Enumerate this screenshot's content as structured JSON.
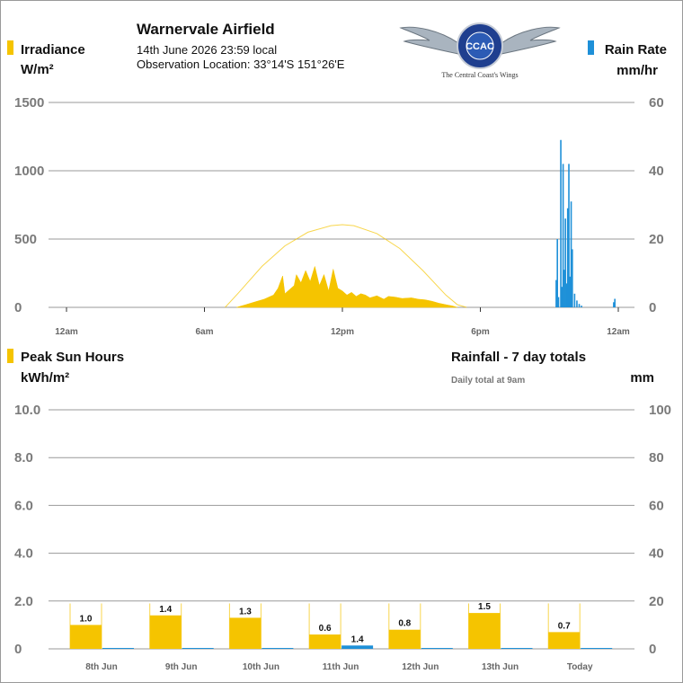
{
  "header": {
    "title": "Warnervale Airfield",
    "datetime": "14th June 2026  23:59 local",
    "location": "Observation Location: 33°14'S 151°26'E"
  },
  "logo": {
    "ring_text": "CENTRAL COAST AERO CLUB",
    "monogram": "CCAC",
    "tagline": "The Central Coast's Wings"
  },
  "colors": {
    "solar": "#f5c400",
    "rain": "#1e90d8",
    "clear_sky": "#f5c400",
    "grid": "#999999"
  },
  "chart_data": [
    {
      "type": "area",
      "legend_left": {
        "name": "Irradiance",
        "unit": "W/m²"
      },
      "legend_right": {
        "name": "Rain Rate",
        "unit": "mm/hr"
      },
      "x_ticks": [
        "12am",
        "6am",
        "12pm",
        "6pm",
        "12am"
      ],
      "x_range_hours": [
        0,
        24
      ],
      "y_left_ticks": [
        "0",
        "500",
        "1000",
        "1500"
      ],
      "y_left_range": [
        0,
        1500
      ],
      "y_right_ticks": [
        "0",
        "20",
        "40",
        "60"
      ],
      "y_right_range": [
        0,
        60
      ],
      "clear_sky": {
        "x": [
          6.9,
          7.5,
          8.5,
          9.5,
          10.5,
          11.5,
          12.0,
          12.5,
          13.5,
          14.5,
          15.5,
          16.5,
          17.0,
          17.4
        ],
        "y": [
          0,
          110,
          300,
          450,
          550,
          598,
          605,
          598,
          540,
          430,
          270,
          90,
          20,
          0
        ]
      },
      "irradiance": {
        "x": [
          7.4,
          7.8,
          8.2,
          8.6,
          9.0,
          9.2,
          9.4,
          9.5,
          9.7,
          9.9,
          10.0,
          10.2,
          10.4,
          10.6,
          10.8,
          11.0,
          11.2,
          11.4,
          11.6,
          11.8,
          12.0,
          12.2,
          12.4,
          12.6,
          12.8,
          13.0,
          13.2,
          13.5,
          13.8,
          14.0,
          14.3,
          14.6,
          15.0,
          15.3,
          15.6,
          15.9,
          16.2,
          16.5,
          16.8,
          17.0
        ],
        "y": [
          0,
          20,
          40,
          60,
          90,
          140,
          230,
          100,
          130,
          160,
          240,
          180,
          270,
          190,
          300,
          160,
          240,
          120,
          280,
          140,
          120,
          90,
          110,
          80,
          100,
          90,
          70,
          85,
          60,
          80,
          75,
          65,
          70,
          60,
          55,
          45,
          30,
          20,
          10,
          0
        ]
      },
      "rain_rate": {
        "x": [
          21.3,
          21.35,
          21.4,
          21.5,
          21.55,
          21.6,
          21.65,
          21.7,
          21.75,
          21.8,
          21.85,
          21.9,
          21.95,
          22.0,
          22.1,
          22.2,
          22.3,
          22.4,
          23.8,
          23.85
        ],
        "y": [
          8,
          20,
          3,
          49,
          6,
          42,
          11,
          26,
          7,
          29,
          42,
          9,
          31,
          17,
          4,
          2,
          1,
          0.5,
          1.5,
          2.5
        ]
      }
    },
    {
      "type": "bar",
      "legend_left": {
        "name": "Peak Sun Hours",
        "unit": "kWh/m²"
      },
      "legend_right": {
        "name": "Rainfall - 7 day totals",
        "note": "Daily total at 9am",
        "unit": "mm"
      },
      "categories": [
        "8th Jun",
        "9th Jun",
        "10th Jun",
        "11th Jun",
        "12th Jun",
        "13th Jun",
        "Today"
      ],
      "y_left_ticks": [
        "0",
        "2.0",
        "4.0",
        "6.0",
        "8.0",
        "10.0"
      ],
      "y_left_range": [
        0,
        10
      ],
      "y_right_ticks": [
        "0",
        "20",
        "40",
        "60",
        "80",
        "100"
      ],
      "y_right_range": [
        0,
        100
      ],
      "series": [
        {
          "name": "Peak Sun Hours",
          "values": [
            1.0,
            1.4,
            1.3,
            0.6,
            0.8,
            1.5,
            0.7
          ],
          "labels": [
            "1.0",
            "1.4",
            "1.3",
            "0.6",
            "0.8",
            "1.5",
            "0.7"
          ]
        },
        {
          "name": "Rainfall",
          "values": [
            0,
            0,
            0,
            1.4,
            0,
            0,
            0
          ],
          "labels": [
            "",
            "",
            "",
            "1.4",
            "",
            "",
            ""
          ]
        }
      ],
      "clear_sky_max": [
        1.9,
        1.9,
        1.9,
        1.9,
        1.9,
        1.9,
        1.9
      ]
    }
  ]
}
